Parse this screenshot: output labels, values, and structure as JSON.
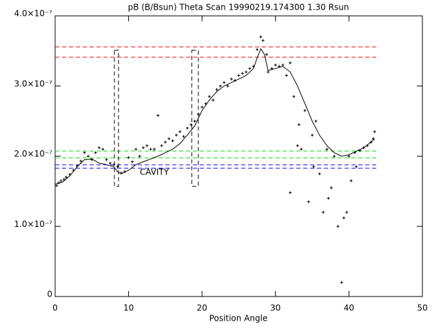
{
  "chart_data": {
    "type": "scatter",
    "title": "pB (B/Bsun) Theta Scan 19990219.174300 1.30 Rsun",
    "x_label": "Position Angle",
    "xlim": [
      0,
      50
    ],
    "xticks": [
      0,
      10,
      20,
      30,
      40,
      50
    ],
    "ylim": [
      0,
      4e-07
    ],
    "yticks": [
      0,
      {
        "value": 1e-07,
        "label": "1.0×10⁻⁷"
      },
      {
        "value": 2e-07,
        "label": "2.0×10⁻⁷"
      },
      {
        "value": 3e-07,
        "label": "3.0×10⁻⁷"
      },
      {
        "value": 4e-07,
        "label": "4.0×10⁻⁷"
      }
    ],
    "series": [
      {
        "type": "scatter",
        "color": "#000000",
        "x": [
          0.2,
          0.5,
          0.8,
          1.2,
          1.5,
          2,
          2.5,
          3,
          3.5,
          4,
          4.5,
          5,
          5.5,
          6,
          6.5,
          7,
          7.5,
          8,
          8.5,
          9,
          9.5,
          10,
          10.5,
          11,
          11.5,
          12,
          12.5,
          13,
          13.5,
          14,
          14.5,
          15,
          15.5,
          16,
          16.5,
          17,
          17.5,
          18,
          18.5,
          19,
          19.5,
          20,
          20.5,
          21,
          21.5,
          22,
          22.5,
          23,
          23.5,
          24,
          24.5,
          25,
          25.5,
          26,
          26.5,
          27,
          27.5,
          28,
          28.3,
          28.8,
          29,
          29.5,
          30,
          30.5,
          31,
          31.5,
          32,
          32,
          32.5,
          33,
          33.2,
          33.5,
          34,
          34.5,
          35,
          35.2,
          35.5,
          36,
          36.5,
          37,
          37.2,
          37.6,
          38,
          38.5,
          39,
          39.3,
          39.7,
          40,
          40.3,
          40.8,
          41,
          41.5,
          42,
          42.5,
          43,
          43.3,
          43.5
        ],
        "values": [
          1.58e-07,
          1.62e-07,
          1.65e-07,
          1.67e-07,
          1.7e-07,
          1.74e-07,
          1.8e-07,
          1.86e-07,
          1.93e-07,
          2.05e-07,
          2e-07,
          1.95e-07,
          2.05e-07,
          2.12e-07,
          2.1e-07,
          1.95e-07,
          1.9e-07,
          1.88e-07,
          1.85e-07,
          1.76e-07,
          1.78e-07,
          1.98e-07,
          1.92e-07,
          2.1e-07,
          2e-07,
          2.12e-07,
          2.15e-07,
          2.1e-07,
          2.1e-07,
          2.58e-07,
          2.15e-07,
          2.2e-07,
          2.25e-07,
          2.22e-07,
          2.3e-07,
          2.35e-07,
          2.28e-07,
          2.4e-07,
          2.45e-07,
          2.5e-07,
          2.6e-07,
          2.7e-07,
          2.75e-07,
          2.85e-07,
          2.8e-07,
          2.95e-07,
          3e-07,
          3.05e-07,
          3e-07,
          3.1e-07,
          3.08e-07,
          3.15e-07,
          3.18e-07,
          3.2e-07,
          3.25e-07,
          3.28e-07,
          3.52e-07,
          3.7e-07,
          3.65e-07,
          3.45e-07,
          3.2e-07,
          3.25e-07,
          3.3e-07,
          3.28e-07,
          3.3e-07,
          3.15e-07,
          3.33e-07,
          1.48e-07,
          2.85e-07,
          2.15e-07,
          2.45e-07,
          2.1e-07,
          2.65e-07,
          1.35e-07,
          2.3e-07,
          1.85e-07,
          2.5e-07,
          1.75e-07,
          1.2e-07,
          2.1e-07,
          1.4e-07,
          1.55e-07,
          2e-07,
          1e-07,
          2e-08,
          1.12e-07,
          1.2e-07,
          2e-07,
          1.65e-07,
          2.05e-07,
          1.85e-07,
          2.08e-07,
          2.12e-07,
          2.15e-07,
          2.2e-07,
          2.25e-07,
          2.35e-07
        ]
      },
      {
        "type": "line",
        "color": "#000000",
        "x": [
          0,
          1,
          2,
          3,
          4,
          5,
          6,
          7,
          8,
          8.5,
          9,
          10,
          11,
          12,
          13,
          14,
          15,
          16,
          17,
          18,
          19,
          20,
          21,
          22,
          23,
          24,
          25,
          26,
          27,
          27.5,
          28,
          28.5,
          29,
          30,
          31,
          32,
          33,
          34,
          35,
          36,
          37,
          38,
          39,
          40,
          41,
          42,
          43,
          43.5
        ],
        "values": [
          1.6e-07,
          1.63e-07,
          1.72e-07,
          1.85e-07,
          1.95e-07,
          1.96e-07,
          1.9e-07,
          1.88e-07,
          1.85e-07,
          1.78e-07,
          1.75e-07,
          1.8e-07,
          1.88e-07,
          1.92e-07,
          1.96e-07,
          2e-07,
          2.05e-07,
          2.1e-07,
          2.18e-07,
          2.3e-07,
          2.43e-07,
          2.65e-07,
          2.8e-07,
          2.92e-07,
          3e-07,
          3.05e-07,
          3.1e-07,
          3.15e-07,
          3.25e-07,
          3.4e-07,
          3.53e-07,
          3.45e-07,
          3.22e-07,
          3.25e-07,
          3.28e-07,
          3.2e-07,
          3e-07,
          2.75e-07,
          2.5e-07,
          2.3e-07,
          2.15e-07,
          2.05e-07,
          2e-07,
          2.02e-07,
          2.07e-07,
          2.12e-07,
          2.2e-07,
          2.25e-07
        ]
      }
    ],
    "reference_lines": [
      {
        "value": 3.558e-07,
        "color": "#ff0000",
        "x_range": [
          0,
          44
        ]
      },
      {
        "value": 3.41e-07,
        "color": "#ff0000",
        "x_range": [
          0,
          44
        ]
      },
      {
        "value": 2.074e-07,
        "color": "#00dd00",
        "x_range": [
          0,
          44
        ]
      },
      {
        "value": 1.975e-07,
        "color": "#00dd00",
        "x_range": [
          0,
          44
        ]
      },
      {
        "value": 1.877e-07,
        "color": "#0000ff",
        "x_range": [
          0,
          44
        ]
      },
      {
        "value": 1.828e-07,
        "color": "#0000ff",
        "x_range": [
          0,
          44
        ]
      }
    ],
    "regions": [
      {
        "x": [
          8.07,
          8.63
        ],
        "y": [
          1.57e-07,
          3.51e-07
        ]
      },
      {
        "x": [
          18.6,
          19.5
        ],
        "y": [
          1.57e-07,
          3.51e-07
        ]
      }
    ],
    "annotation": {
      "text": "CAVITY",
      "color": "#ff0000"
    }
  }
}
